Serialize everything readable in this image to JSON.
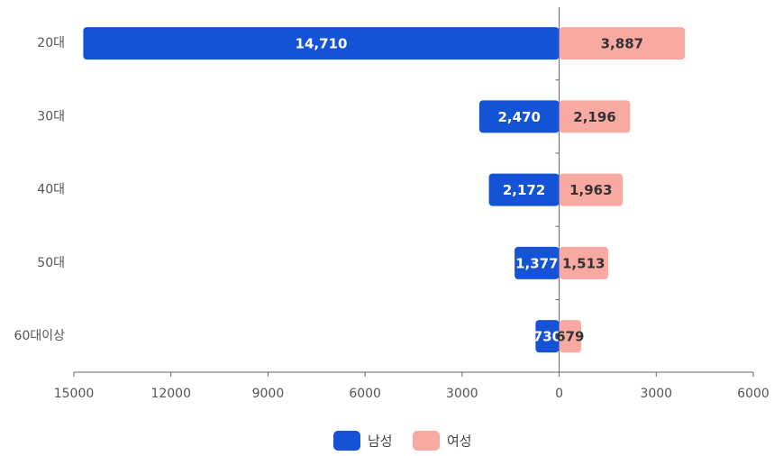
{
  "chart_data": {
    "type": "pyramid",
    "categories": [
      "20대",
      "30대",
      "40대",
      "50대",
      "60대이상"
    ],
    "series": [
      {
        "name": "남성",
        "color": "#1553d6",
        "values": [
          14710,
          2470,
          2172,
          1377,
          730
        ],
        "value_labels": [
          "14,710",
          "2,470",
          "2,172",
          "1,377",
          "730"
        ]
      },
      {
        "name": "여성",
        "color": "#f8a9a2",
        "values": [
          3887,
          2196,
          1963,
          1513,
          679
        ],
        "value_labels": [
          "3,887",
          "2,196",
          "1,963",
          "1,513",
          "679"
        ]
      }
    ],
    "xlim": [
      -15000,
      6000
    ],
    "xticks": [
      {
        "value": -15000,
        "label": "15000"
      },
      {
        "value": -12000,
        "label": "12000"
      },
      {
        "value": -9000,
        "label": "9000"
      },
      {
        "value": -6000,
        "label": "6000"
      },
      {
        "value": -3000,
        "label": "3000"
      },
      0,
      3000,
      6000
    ],
    "legend": "bottom"
  }
}
